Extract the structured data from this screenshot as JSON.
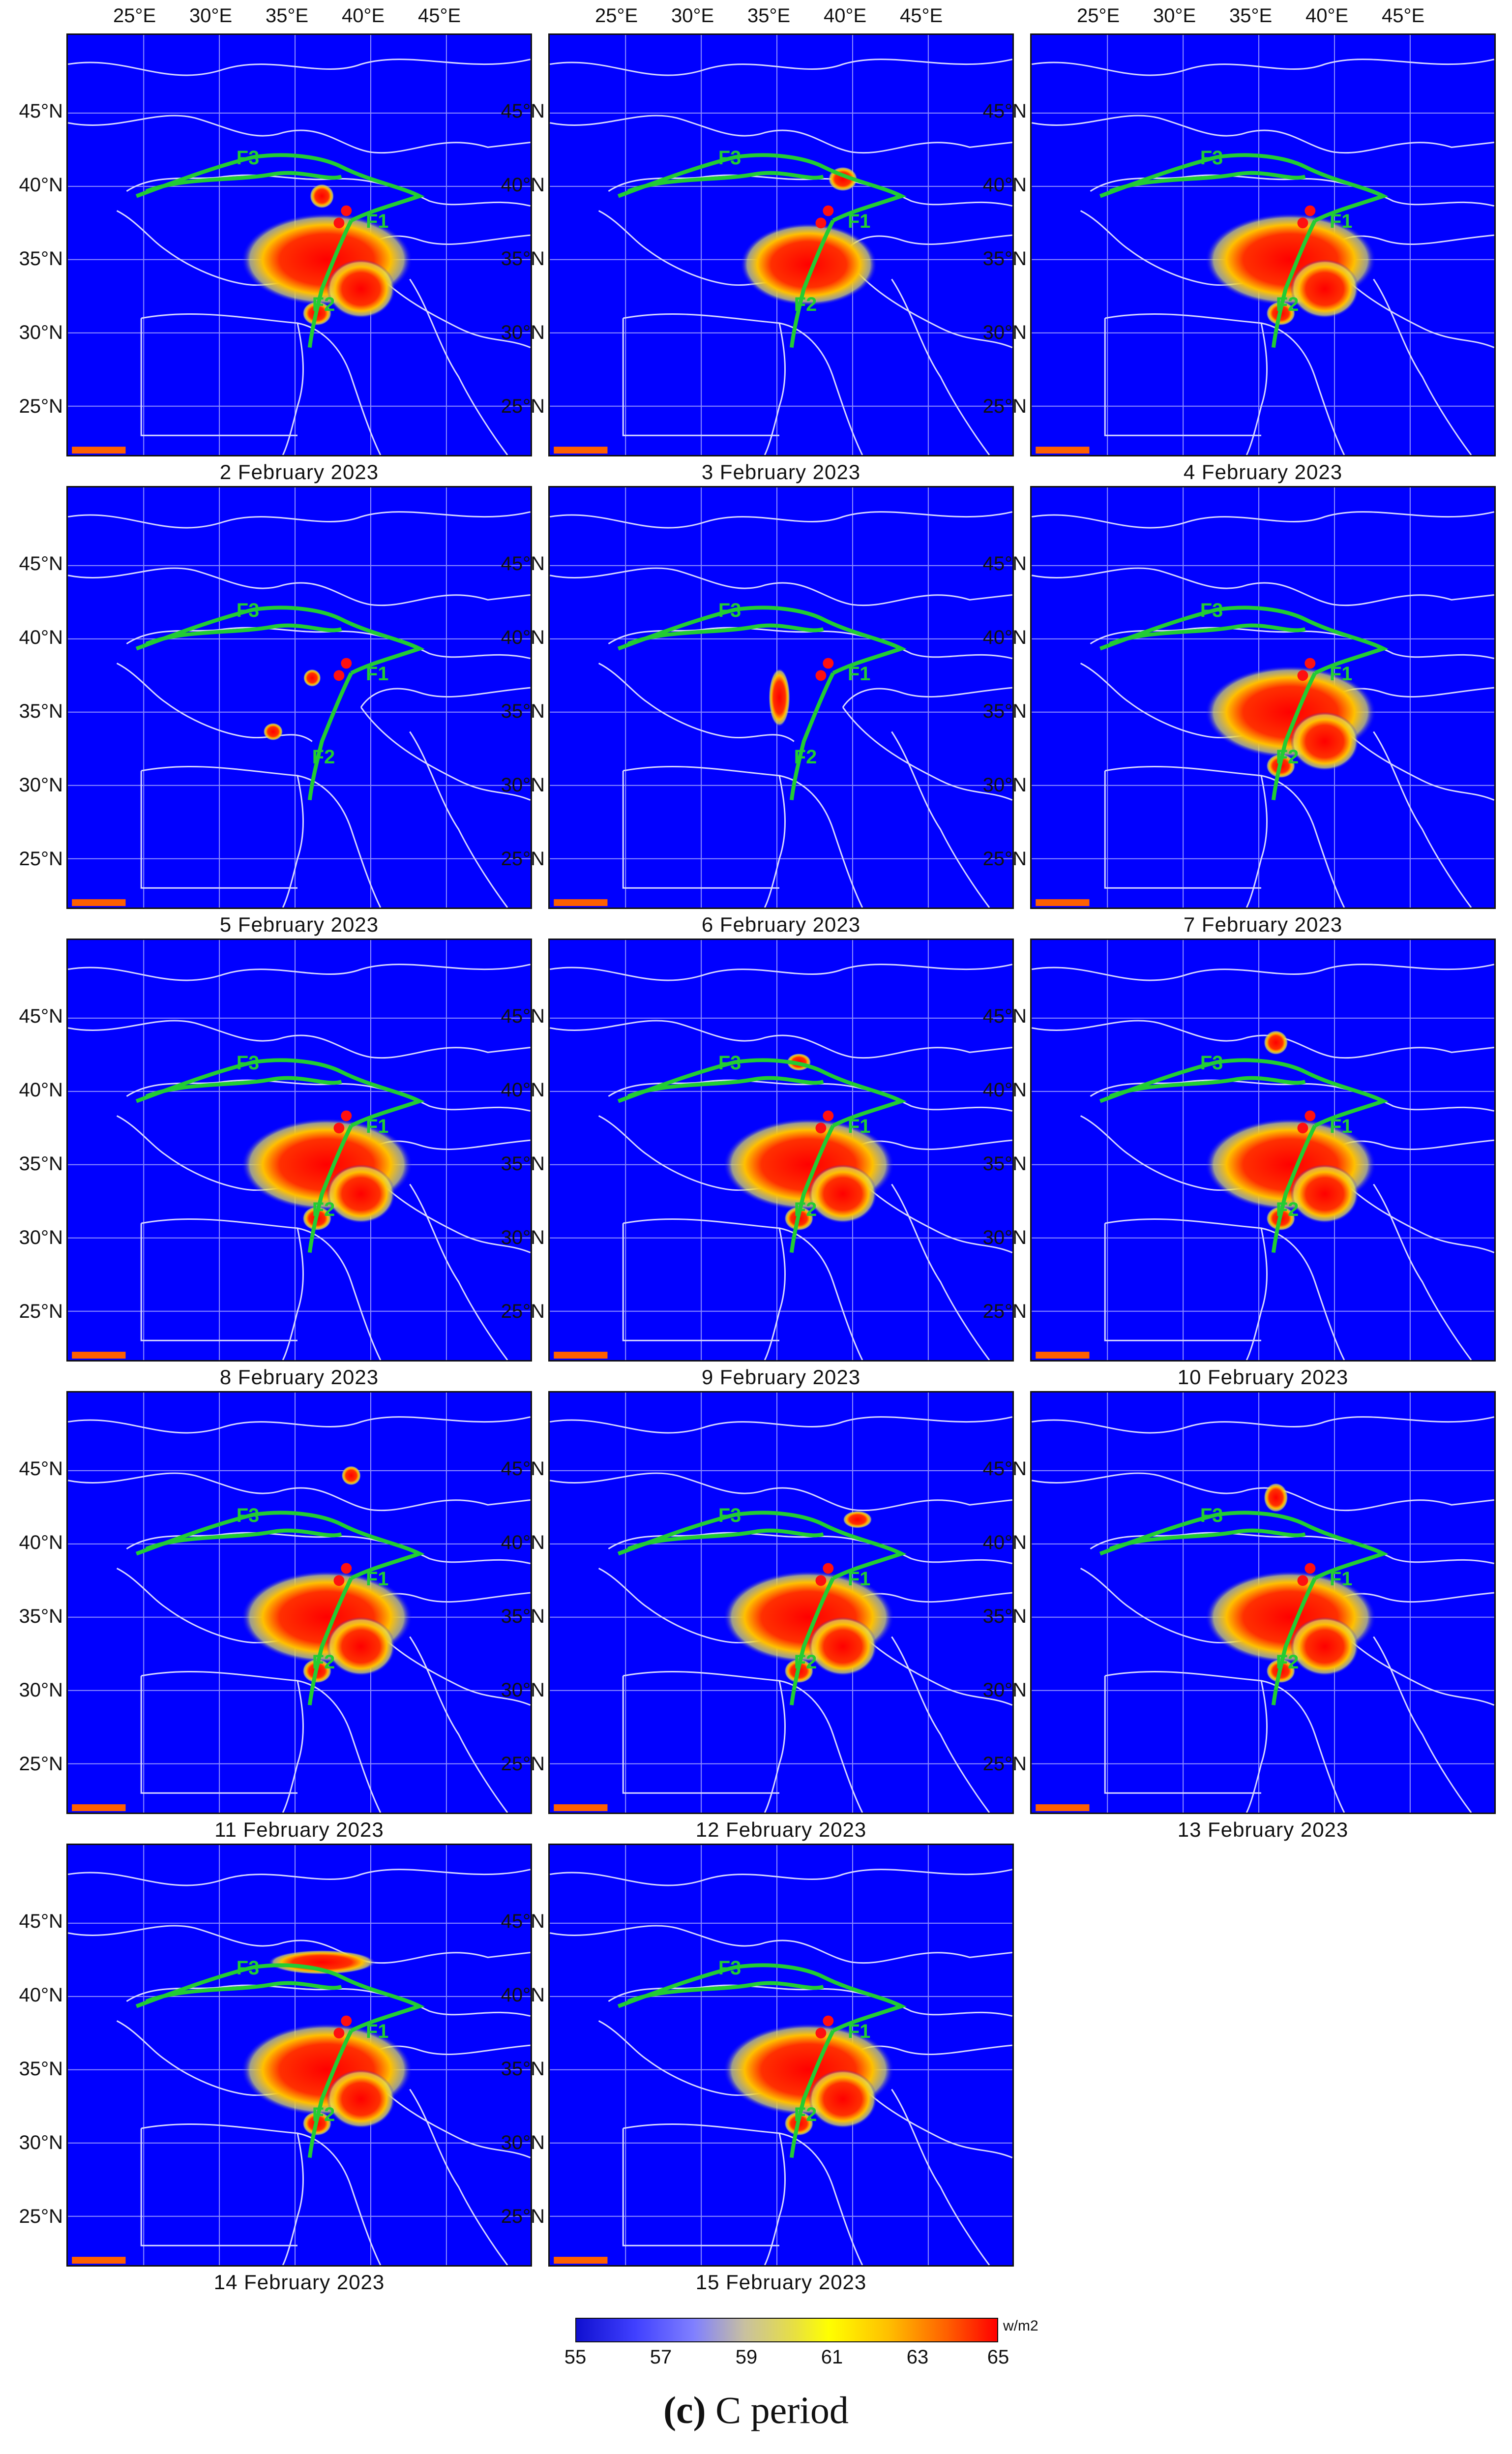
{
  "longitude_labels": [
    "25°E",
    "30°E",
    "35°E",
    "40°E",
    "45°E"
  ],
  "latitude_labels": [
    "45°N",
    "40°N",
    "35°N",
    "30°N",
    "25°N"
  ],
  "fault_labels": [
    "F1",
    "F2",
    "F3"
  ],
  "panels": [
    {
      "date": "2 February 2023"
    },
    {
      "date": "3 February 2023"
    },
    {
      "date": "4 February 2023"
    },
    {
      "date": "5 February 2023"
    },
    {
      "date": "6 February 2023"
    },
    {
      "date": "7 February 2023"
    },
    {
      "date": "8 February 2023"
    },
    {
      "date": "9 February 2023"
    },
    {
      "date": "10 February 2023"
    },
    {
      "date": "11 February 2023"
    },
    {
      "date": "12 February 2023"
    },
    {
      "date": "13 February 2023"
    },
    {
      "date": "14 February 2023"
    },
    {
      "date": "15 February 2023"
    }
  ],
  "colorbar": {
    "ticks": [
      "55",
      "57",
      "59",
      "61",
      "63",
      "65"
    ],
    "unit": "w/m2",
    "colors": [
      "#1010d0",
      "#8080ff",
      "#ffff00",
      "#ff6000",
      "#ff0000"
    ]
  },
  "caption": {
    "letter": "(c)",
    "text": " C period"
  }
}
